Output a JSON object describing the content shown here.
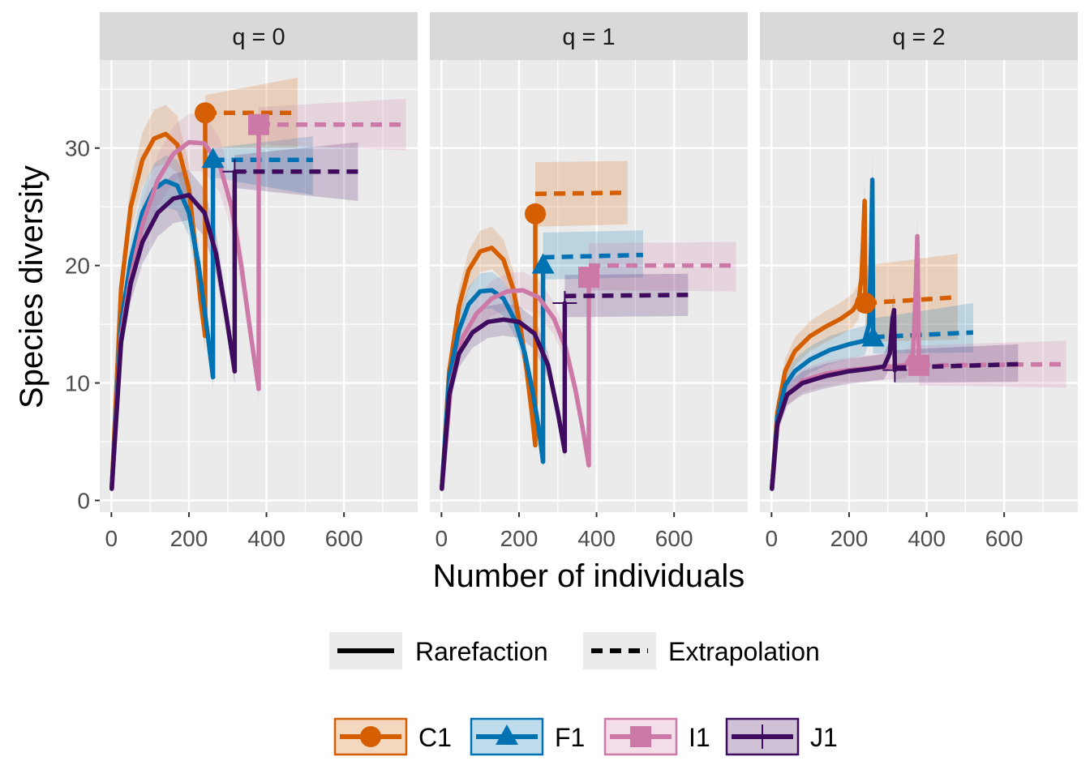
{
  "chart_data": {
    "type": "line",
    "xlabel": "Number of individuals",
    "ylabel": "Species diversity",
    "xlim": [
      -30,
      790
    ],
    "ylim": [
      -1,
      37.5
    ],
    "x_ticks": [
      0,
      200,
      400,
      600
    ],
    "y_ticks": [
      0,
      10,
      20,
      30
    ],
    "grid": true,
    "legend_position": "bottom",
    "colors": {
      "C1": "#D55E00",
      "F1": "#0072B2",
      "I1": "#CC79A7",
      "J1": "#3F0B5E",
      "panel_bg": "#EBEBEB",
      "strip_bg": "#D9D9D9",
      "grid": "#FFFFFF"
    },
    "line_type_legend": [
      {
        "label": "Rarefaction",
        "style": "solid"
      },
      {
        "label": "Extrapolation",
        "style": "dashed"
      }
    ],
    "site_legend": [
      {
        "label": "C1",
        "color": "#D55E00",
        "shape": "circle"
      },
      {
        "label": "F1",
        "color": "#0072B2",
        "shape": "triangle"
      },
      {
        "label": "I1",
        "color": "#CC79A7",
        "shape": "square"
      },
      {
        "label": "J1",
        "color": "#3F0B5E",
        "shape": "plus"
      }
    ],
    "panels": [
      {
        "label": "q = 0",
        "series": [
          {
            "name": "C1",
            "rarefaction": {
              "x": [
                1,
                25,
                50,
                80,
                110,
                140,
                170,
                200,
                215,
                230,
                242
              ],
              "y": [
                1,
                18,
                25,
                29,
                30.8,
                31.2,
                30.3,
                26.5,
                22,
                17,
                14
              ]
            },
            "ref_point": [
              242,
              33
            ],
            "extrapolation": {
              "x": [
                242,
                480
              ],
              "y": [
                33,
                33
              ]
            },
            "band": {
              "x": [
                242,
                480
              ],
              "lower": [
                30,
                30
              ],
              "upper": [
                34.5,
                36
              ]
            }
          },
          {
            "name": "F1",
            "rarefaction": {
              "x": [
                1,
                25,
                50,
                80,
                110,
                140,
                170,
                200,
                225,
                245,
                262
              ],
              "y": [
                1,
                15,
                20.5,
                24.5,
                26.5,
                27.2,
                26.8,
                24.5,
                20,
                15,
                10.5
              ]
            },
            "ref_point": [
              262,
              29
            ],
            "extrapolation": {
              "x": [
                262,
                520
              ],
              "y": [
                29,
                29
              ]
            },
            "band": {
              "x": [
                262,
                520
              ],
              "lower": [
                27.5,
                26
              ]
            },
            "upper_band": [
              30,
              31
            ]
          },
          {
            "name": "I1",
            "rarefaction": {
              "x": [
                1,
                25,
                50,
                80,
                120,
                160,
                200,
                240,
                280,
                310,
                335,
                360,
                380
              ],
              "y": [
                1,
                14,
                19,
                23.5,
                27.3,
                29.5,
                30.5,
                30.4,
                28.5,
                25,
                20,
                14,
                9.5
              ]
            },
            "ref_point": [
              380,
              32
            ],
            "extrapolation": {
              "x": [
                380,
                760
              ],
              "y": [
                32,
                32
              ]
            },
            "band": {
              "x": [
                380,
                760
              ],
              "lower": [
                30.3,
                29.8
              ],
              "upper": [
                33.5,
                34.2
              ]
            }
          },
          {
            "name": "J1",
            "rarefaction": {
              "x": [
                1,
                25,
                50,
                80,
                120,
                160,
                200,
                240,
                270,
                295,
                318
              ],
              "y": [
                1,
                13.5,
                18.5,
                22,
                24.5,
                25.7,
                26,
                24.5,
                21,
                16,
                11
              ]
            },
            "ref_point": [
              318,
              28
            ],
            "extrapolation": {
              "x": [
                318,
                636
              ],
              "y": [
                28,
                28
              ]
            },
            "band": {
              "x": [
                318,
                636
              ],
              "lower": [
                26.6,
                25.5
              ],
              "upper": [
                29.4,
                30.5
              ]
            }
          }
        ]
      },
      {
        "label": "q = 1",
        "series": [
          {
            "name": "C1",
            "rarefaction": {
              "x": [
                1,
                20,
                45,
                70,
                100,
                130,
                160,
                185,
                205,
                220,
                233,
                242
              ],
              "y": [
                1,
                11,
                16.5,
                19.6,
                21.2,
                21.5,
                20.5,
                18,
                14.5,
                11,
                7.5,
                4.7
              ]
            },
            "ref_point": [
              242,
              24.4
            ],
            "extrapolation": {
              "x": [
                242,
                480
              ],
              "y": [
                26.1,
                26.2
              ]
            },
            "band": {
              "x": [
                242,
                480
              ],
              "lower": [
                23.3,
                23.5
              ],
              "upper": [
                28.8,
                28.9
              ]
            }
          },
          {
            "name": "F1",
            "rarefaction": {
              "x": [
                1,
                20,
                45,
                70,
                100,
                130,
                160,
                190,
                215,
                235,
                250,
                262
              ],
              "y": [
                1,
                10.5,
                14.5,
                16.7,
                17.8,
                17.9,
                17.2,
                15.3,
                12.5,
                9.3,
                6.3,
                3.3
              ]
            },
            "ref_point": [
              262,
              20
            ],
            "extrapolation": {
              "x": [
                262,
                520
              ],
              "y": [
                20.7,
                20.9
              ]
            },
            "band": {
              "x": [
                262,
                520
              ],
              "lower": [
                18.8,
                19
              ],
              "upper": [
                22.8,
                23
              ]
            }
          },
          {
            "name": "I1",
            "rarefaction": {
              "x": [
                1,
                25,
                55,
                90,
                130,
                170,
                210,
                250,
                290,
                320,
                345,
                365,
                380
              ],
              "y": [
                1,
                10,
                13.9,
                15.9,
                17.2,
                17.8,
                17.9,
                17.3,
                15.5,
                13,
                9.5,
                6,
                3
              ]
            },
            "ref_point": [
              380,
              19
            ],
            "extrapolation": {
              "x": [
                380,
                760
              ],
              "y": [
                20,
                20
              ]
            },
            "band": {
              "x": [
                380,
                760
              ],
              "lower": [
                17.9,
                17.8
              ],
              "upper": [
                21.9,
                22
              ]
            }
          },
          {
            "name": "J1",
            "rarefaction": {
              "x": [
                1,
                20,
                45,
                80,
                120,
                160,
                200,
                240,
                275,
                300,
                318
              ],
              "y": [
                1,
                9,
                12.5,
                14.3,
                15.2,
                15.4,
                15.2,
                14.2,
                11.5,
                7.5,
                4.2
              ]
            },
            "ref_point": [
              318,
              16.8
            ],
            "extrapolation": {
              "x": [
                318,
                636
              ],
              "y": [
                17.4,
                17.5
              ]
            },
            "band": {
              "x": [
                318,
                636
              ],
              "lower": [
                15.6,
                15.7
              ],
              "upper": [
                19.2,
                19.3
              ]
            }
          }
        ]
      },
      {
        "label": "q = 2",
        "series": [
          {
            "name": "C1",
            "rarefaction": {
              "x": [
                1,
                15,
                35,
                60,
                100,
                140,
                180,
                210,
                225,
                232,
                236,
                240,
                242
              ],
              "y": [
                1,
                7.5,
                11,
                12.7,
                14,
                14.8,
                15.5,
                16.2,
                17,
                19,
                22,
                25.5,
                16.8
              ]
            },
            "ref_point": [
              242,
              16.8
            ],
            "extrapolation": {
              "x": [
                242,
                480
              ],
              "y": [
                16.8,
                17.3
              ]
            },
            "band": {
              "x": [
                242,
                480
              ],
              "lower": [
                13.5,
                13.7
              ],
              "upper": [
                20,
                21
              ]
            }
          },
          {
            "name": "F1",
            "rarefaction": {
              "x": [
                1,
                15,
                35,
                60,
                100,
                150,
                200,
                240,
                252,
                257,
                260,
                262
              ],
              "y": [
                1,
                7,
                9.8,
                11,
                12,
                12.8,
                13.3,
                13.6,
                15,
                22,
                27.3,
                13.8
              ]
            },
            "ref_point": [
              262,
              13.8
            ],
            "extrapolation": {
              "x": [
                262,
                520
              ],
              "y": [
                13.9,
                14.3
              ]
            },
            "band": {
              "x": [
                262,
                520
              ],
              "lower": [
                12.5,
                12.6
              ],
              "upper": [
                15.5,
                16.8
              ]
            }
          },
          {
            "name": "I1",
            "rarefaction": {
              "x": [
                1,
                15,
                40,
                80,
                140,
                200,
                260,
                310,
                345,
                365,
                372,
                376,
                380
              ],
              "y": [
                1,
                6.5,
                9,
                10.2,
                10.8,
                11.1,
                11.3,
                11.4,
                11.5,
                12.5,
                18,
                22.5,
                11.5
              ]
            },
            "ref_point": [
              380,
              11.5
            ],
            "extrapolation": {
              "x": [
                380,
                760
              ],
              "y": [
                11.5,
                11.6
              ]
            },
            "band": {
              "x": [
                380,
                760
              ],
              "lower": [
                9.8,
                9.6
              ],
              "upper": [
                13.2,
                13.6
              ]
            }
          },
          {
            "name": "J1",
            "rarefaction": {
              "x": [
                1,
                15,
                40,
                80,
                140,
                200,
                250,
                290,
                305,
                312,
                316,
                318
              ],
              "y": [
                1,
                6.5,
                9,
                10,
                10.6,
                11,
                11.2,
                11.4,
                12.5,
                15.5,
                16.2,
                11.1
              ]
            },
            "ref_point": [
              318,
              11.1
            ],
            "extrapolation": {
              "x": [
                318,
                636
              ],
              "y": [
                11.3,
                11.6
              ]
            },
            "band": {
              "x": [
                318,
                636
              ],
              "lower": [
                10,
                10.1
              ],
              "upper": [
                12.8,
                13.3
              ]
            }
          }
        ]
      }
    ]
  }
}
